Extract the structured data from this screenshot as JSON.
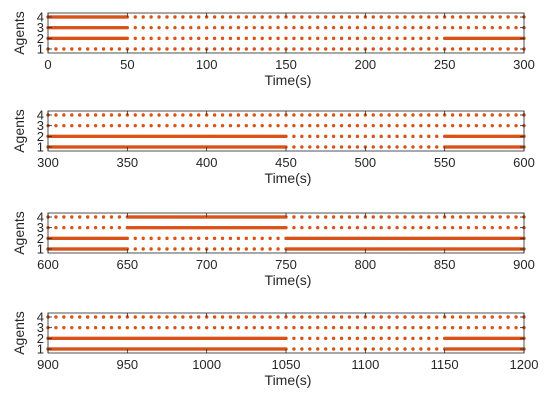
{
  "chart_data": [
    {
      "type": "scatter",
      "xlabel": "Time(s)",
      "ylabel": "Agents",
      "xlim": [
        0,
        300
      ],
      "ylim": [
        1,
        4
      ],
      "xticks": [
        0,
        50,
        100,
        150,
        200,
        250,
        300
      ],
      "yticks": [
        1,
        2,
        3,
        4
      ],
      "grid": false,
      "marker_color": "#D95319",
      "sample_interval_s": 5,
      "events": [
        {
          "agent": 1,
          "segments": [
            {
              "t0": 0,
              "t1": 300,
              "interval": 5
            }
          ]
        },
        {
          "agent": 2,
          "segments": [
            {
              "t0": 0,
              "t1": 50,
              "interval": 1
            },
            {
              "t0": 50,
              "t1": 250,
              "interval": 5
            },
            {
              "t0": 250,
              "t1": 300,
              "interval": 1
            }
          ]
        },
        {
          "agent": 3,
          "segments": [
            {
              "t0": 0,
              "t1": 50,
              "interval": 1
            },
            {
              "t0": 50,
              "t1": 300,
              "interval": 5
            }
          ]
        },
        {
          "agent": 4,
          "segments": [
            {
              "t0": 0,
              "t1": 50,
              "interval": 1
            },
            {
              "t0": 50,
              "t1": 300,
              "interval": 5
            }
          ]
        }
      ]
    },
    {
      "type": "scatter",
      "xlabel": "Time(s)",
      "ylabel": "Agents",
      "xlim": [
        300,
        600
      ],
      "ylim": [
        1,
        4
      ],
      "xticks": [
        300,
        350,
        400,
        450,
        500,
        550,
        600
      ],
      "yticks": [
        1,
        2,
        3,
        4
      ],
      "grid": false,
      "marker_color": "#D95319",
      "sample_interval_s": 5,
      "events": [
        {
          "agent": 1,
          "segments": [
            {
              "t0": 300,
              "t1": 450,
              "interval": 1
            },
            {
              "t0": 450,
              "t1": 550,
              "interval": 5
            },
            {
              "t0": 550,
              "t1": 600,
              "interval": 1
            }
          ]
        },
        {
          "agent": 2,
          "segments": [
            {
              "t0": 300,
              "t1": 450,
              "interval": 1
            },
            {
              "t0": 450,
              "t1": 550,
              "interval": 5
            },
            {
              "t0": 550,
              "t1": 600,
              "interval": 1
            }
          ]
        },
        {
          "agent": 3,
          "segments": [
            {
              "t0": 300,
              "t1": 600,
              "interval": 5
            }
          ]
        },
        {
          "agent": 4,
          "segments": [
            {
              "t0": 300,
              "t1": 600,
              "interval": 5
            }
          ]
        }
      ]
    },
    {
      "type": "scatter",
      "xlabel": "Time(s)",
      "ylabel": "Agents",
      "xlim": [
        600,
        900
      ],
      "ylim": [
        1,
        4
      ],
      "xticks": [
        600,
        650,
        700,
        750,
        800,
        850,
        900
      ],
      "yticks": [
        1,
        2,
        3,
        4
      ],
      "grid": false,
      "marker_color": "#D95319",
      "sample_interval_s": 5,
      "events": [
        {
          "agent": 1,
          "segments": [
            {
              "t0": 600,
              "t1": 650,
              "interval": 1
            },
            {
              "t0": 650,
              "t1": 750,
              "interval": 5
            },
            {
              "t0": 750,
              "t1": 900,
              "interval": 1
            }
          ]
        },
        {
          "agent": 2,
          "segments": [
            {
              "t0": 600,
              "t1": 650,
              "interval": 1
            },
            {
              "t0": 650,
              "t1": 750,
              "interval": 5
            },
            {
              "t0": 750,
              "t1": 900,
              "interval": 1
            }
          ]
        },
        {
          "agent": 3,
          "segments": [
            {
              "t0": 600,
              "t1": 650,
              "interval": 5
            },
            {
              "t0": 650,
              "t1": 750,
              "interval": 1
            },
            {
              "t0": 750,
              "t1": 900,
              "interval": 5
            }
          ]
        },
        {
          "agent": 4,
          "segments": [
            {
              "t0": 600,
              "t1": 650,
              "interval": 5
            },
            {
              "t0": 650,
              "t1": 750,
              "interval": 1
            },
            {
              "t0": 750,
              "t1": 900,
              "interval": 5
            }
          ]
        }
      ]
    },
    {
      "type": "scatter",
      "xlabel": "Time(s)",
      "ylabel": "Agents",
      "xlim": [
        900,
        1200
      ],
      "ylim": [
        1,
        4
      ],
      "xticks": [
        900,
        950,
        1000,
        1050,
        1100,
        1150,
        1200
      ],
      "yticks": [
        1,
        2,
        3,
        4
      ],
      "grid": false,
      "marker_color": "#D95319",
      "sample_interval_s": 5,
      "events": [
        {
          "agent": 1,
          "segments": [
            {
              "t0": 900,
              "t1": 1050,
              "interval": 1
            },
            {
              "t0": 1050,
              "t1": 1150,
              "interval": 5
            },
            {
              "t0": 1150,
              "t1": 1200,
              "interval": 1
            }
          ]
        },
        {
          "agent": 2,
          "segments": [
            {
              "t0": 900,
              "t1": 1050,
              "interval": 1
            },
            {
              "t0": 1050,
              "t1": 1150,
              "interval": 5
            },
            {
              "t0": 1150,
              "t1": 1200,
              "interval": 1
            }
          ]
        },
        {
          "agent": 3,
          "segments": [
            {
              "t0": 900,
              "t1": 1200,
              "interval": 5
            }
          ]
        },
        {
          "agent": 4,
          "segments": [
            {
              "t0": 900,
              "t1": 1200,
              "interval": 5
            }
          ]
        }
      ]
    }
  ]
}
